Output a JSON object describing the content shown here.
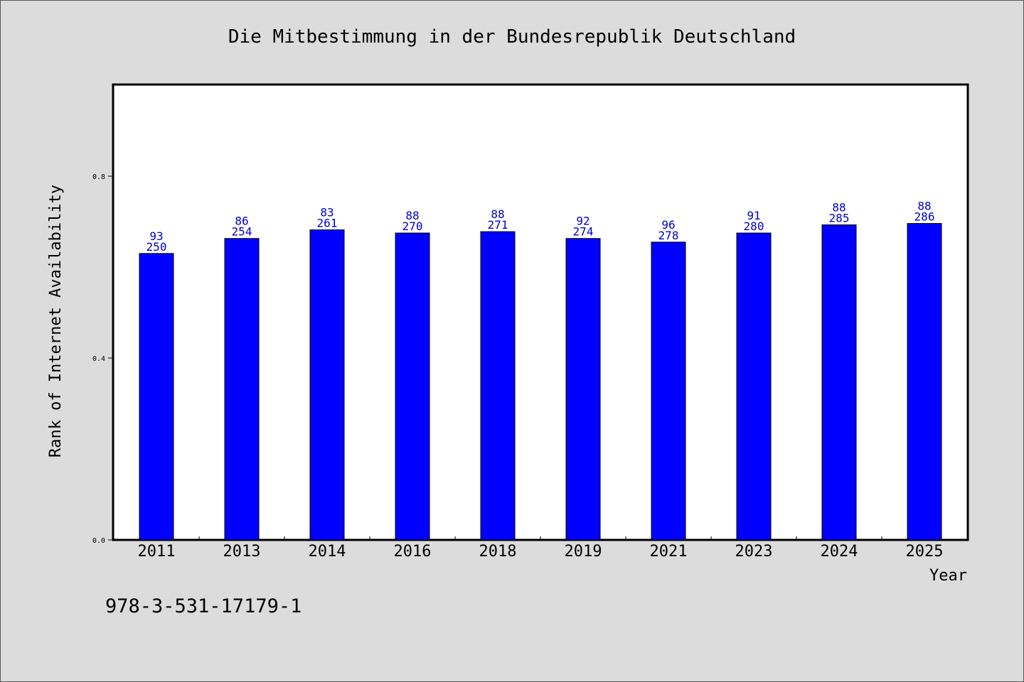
{
  "chart_data": {
    "type": "bar",
    "title": "Die Mitbestimmung in der Bundesrepublik Deutschland",
    "xlabel": "Year",
    "ylabel": "Rank of Internet Availability",
    "ylim": [
      0,
      1.0
    ],
    "yticks": [
      "0.0",
      "0.4",
      "0.8"
    ],
    "categories": [
      "2011",
      "2013",
      "2014",
      "2016",
      "2018",
      "2019",
      "2021",
      "2023",
      "2024",
      "2025"
    ],
    "values": [
      0.63,
      0.663,
      0.682,
      0.675,
      0.678,
      0.663,
      0.655,
      0.675,
      0.693,
      0.696
    ],
    "label_top": [
      "93",
      "86",
      "83",
      "88",
      "88",
      "92",
      "96",
      "91",
      "88",
      "88"
    ],
    "label_bottom": [
      "250",
      "254",
      "261",
      "270",
      "271",
      "274",
      "278",
      "280",
      "285",
      "286"
    ],
    "bar_color": "#0000ff",
    "label_color": "#0000cc",
    "grid": false,
    "legend": "none",
    "footer_note": "978-3-531-17179-1"
  }
}
